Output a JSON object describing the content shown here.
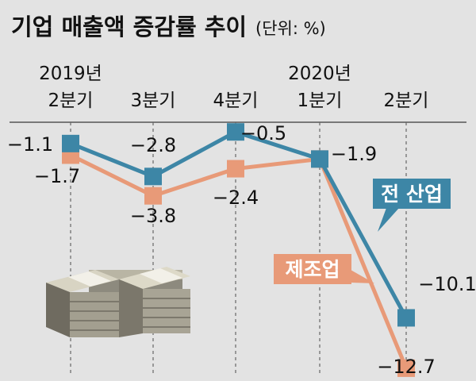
{
  "title": "기업 매출액 증감률 추이",
  "unit": "(단위: %)",
  "colors": {
    "all_industry": "#3d86a6",
    "manufacturing": "#e89a78",
    "background": "#e3e3e3"
  },
  "chart_data": {
    "type": "line",
    "title": "기업 매출액 증감률 추이",
    "unit": "(단위: %)",
    "x_labels": [
      [
        "2019년",
        "2분기"
      ],
      [
        "3분기"
      ],
      [
        "4분기"
      ],
      [
        "2020년",
        "1분기"
      ],
      [
        "2분기"
      ]
    ],
    "series": [
      {
        "name": "전 산업",
        "values": [
          -1.1,
          -2.8,
          -0.5,
          -1.9,
          -10.1
        ],
        "value_labels": [
          "−1.1",
          "−2.8",
          "−0.5",
          "−1.9",
          "−10.1"
        ]
      },
      {
        "name": "제조업",
        "values": [
          -1.7,
          -3.8,
          -2.4,
          -1.9,
          -12.7
        ],
        "value_labels": [
          "−1.7",
          "−3.8",
          "−2.4",
          "",
          "−12.7"
        ]
      }
    ],
    "grid": "vertical",
    "decoration": "money-stack-icon"
  }
}
